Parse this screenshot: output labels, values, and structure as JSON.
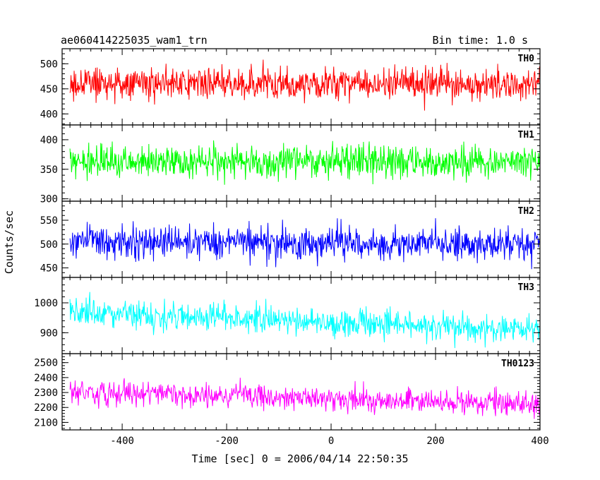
{
  "header": {
    "left_title": "ae060414225035_wam1_trn",
    "right_title": "Bin time: 1.0 s"
  },
  "axes": {
    "xlabel": "Time [sec] 0 = 2006/04/14 22:50:35",
    "ylabel": "Counts/sec"
  },
  "chart_data": {
    "type": "line",
    "xlim": [
      -515,
      400
    ],
    "x_ticks": [
      -400,
      -200,
      0,
      200,
      400
    ],
    "x_start": -500,
    "x_end": 400,
    "bin_time": 1.0,
    "series": [
      {
        "name": "TH0",
        "color": "#ff0000",
        "ylim": [
          378,
          530
        ],
        "y_ticks": [
          400,
          450,
          500
        ],
        "mean": 460,
        "noise": 22,
        "trend": 0
      },
      {
        "name": "TH1",
        "color": "#00ff00",
        "ylim": [
          296,
          425
        ],
        "y_ticks": [
          300,
          350,
          400
        ],
        "mean": 363,
        "noise": 19,
        "trend": 0
      },
      {
        "name": "TH2",
        "color": "#0000ff",
        "ylim": [
          430,
          590
        ],
        "y_ticks": [
          450,
          500,
          550
        ],
        "mean": 502,
        "noise": 24,
        "trend": -10
      },
      {
        "name": "TH3",
        "color": "#00ffff",
        "ylim": [
          830,
          1085
        ],
        "y_ticks": [
          900,
          1000
        ],
        "mean": 940,
        "noise": 32,
        "trend": -60
      },
      {
        "name": "TH0123",
        "color": "#ff00ff",
        "ylim": [
          2050,
          2560
        ],
        "y_ticks": [
          2100,
          2200,
          2300,
          2400,
          2500
        ],
        "mean": 2265,
        "noise": 55,
        "trend": -90
      }
    ]
  }
}
